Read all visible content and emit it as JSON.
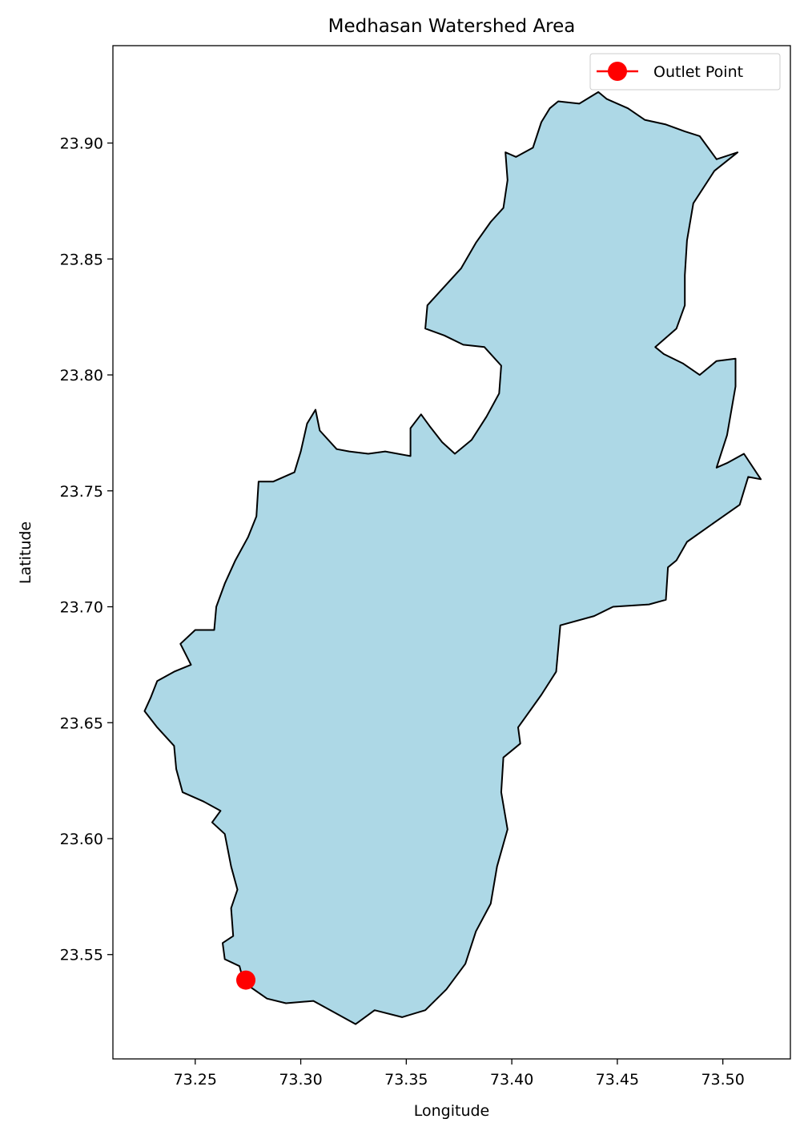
{
  "chart_data": {
    "type": "map",
    "title": "Medhasan Watershed Area",
    "xlabel": "Longitude",
    "ylabel": "Latitude",
    "xlim": [
      73.211,
      73.532
    ],
    "ylim": [
      23.505,
      23.942
    ],
    "x_ticks": [
      {
        "value": 73.25,
        "label": "73.25"
      },
      {
        "value": 73.3,
        "label": "73.30"
      },
      {
        "value": 73.35,
        "label": "73.35"
      },
      {
        "value": 73.4,
        "label": "73.40"
      },
      {
        "value": 73.45,
        "label": "73.45"
      },
      {
        "value": 73.5,
        "label": "73.50"
      }
    ],
    "y_ticks": [
      {
        "value": 23.55,
        "label": "23.55"
      },
      {
        "value": 23.6,
        "label": "23.60"
      },
      {
        "value": 23.65,
        "label": "23.65"
      },
      {
        "value": 23.7,
        "label": "23.70"
      },
      {
        "value": 23.75,
        "label": "23.75"
      },
      {
        "value": 23.8,
        "label": "23.80"
      },
      {
        "value": 23.85,
        "label": "23.85"
      },
      {
        "value": 23.9,
        "label": "23.90"
      }
    ],
    "grid": false,
    "legend": {
      "placement": "top-right",
      "entries": [
        "Outlet Point"
      ]
    },
    "watershed": {
      "fill_color": "#add8e6",
      "edge_color": "#000000",
      "boundary": [
        [
          73.273,
          23.538
        ],
        [
          73.284,
          23.531
        ],
        [
          73.293,
          23.529
        ],
        [
          73.306,
          23.53
        ],
        [
          73.318,
          23.524
        ],
        [
          73.326,
          23.52
        ],
        [
          73.335,
          23.526
        ],
        [
          73.348,
          23.523
        ],
        [
          73.359,
          23.526
        ],
        [
          73.369,
          23.535
        ],
        [
          73.378,
          23.546
        ],
        [
          73.383,
          23.56
        ],
        [
          73.39,
          23.572
        ],
        [
          73.393,
          23.588
        ],
        [
          73.398,
          23.604
        ],
        [
          73.395,
          23.62
        ],
        [
          73.396,
          23.635
        ],
        [
          73.404,
          23.641
        ],
        [
          73.403,
          23.648
        ],
        [
          73.414,
          23.662
        ],
        [
          73.421,
          23.672
        ],
        [
          73.423,
          23.692
        ],
        [
          73.439,
          23.696
        ],
        [
          73.448,
          23.7
        ],
        [
          73.465,
          23.701
        ],
        [
          73.473,
          23.703
        ],
        [
          73.474,
          23.717
        ],
        [
          73.478,
          23.72
        ],
        [
          73.483,
          23.728
        ],
        [
          73.497,
          23.737
        ],
        [
          73.508,
          23.744
        ],
        [
          73.512,
          23.756
        ],
        [
          73.518,
          23.755
        ],
        [
          73.51,
          23.766
        ],
        [
          73.502,
          23.762
        ],
        [
          73.497,
          23.76
        ],
        [
          73.502,
          23.774
        ],
        [
          73.506,
          23.795
        ],
        [
          73.506,
          23.807
        ],
        [
          73.497,
          23.806
        ],
        [
          73.489,
          23.8
        ],
        [
          73.481,
          23.805
        ],
        [
          73.472,
          23.809
        ],
        [
          73.468,
          23.812
        ],
        [
          73.478,
          23.82
        ],
        [
          73.482,
          23.83
        ],
        [
          73.482,
          23.843
        ],
        [
          73.483,
          23.858
        ],
        [
          73.486,
          23.874
        ],
        [
          73.496,
          23.888
        ],
        [
          73.507,
          23.896
        ],
        [
          73.497,
          23.893
        ],
        [
          73.489,
          23.903
        ],
        [
          73.482,
          23.905
        ],
        [
          73.473,
          23.908
        ],
        [
          73.463,
          23.91
        ],
        [
          73.455,
          23.915
        ],
        [
          73.445,
          23.919
        ],
        [
          73.441,
          23.922
        ],
        [
          73.432,
          23.917
        ],
        [
          73.422,
          23.918
        ],
        [
          73.418,
          23.915
        ],
        [
          73.414,
          23.909
        ],
        [
          73.41,
          23.898
        ],
        [
          73.402,
          23.894
        ],
        [
          73.397,
          23.896
        ],
        [
          73.398,
          23.884
        ],
        [
          73.396,
          23.872
        ],
        [
          73.39,
          23.866
        ],
        [
          73.383,
          23.857
        ],
        [
          73.376,
          23.846
        ],
        [
          73.366,
          23.836
        ],
        [
          73.36,
          23.83
        ],
        [
          73.359,
          23.82
        ],
        [
          73.368,
          23.817
        ],
        [
          73.377,
          23.813
        ],
        [
          73.387,
          23.812
        ],
        [
          73.395,
          23.804
        ],
        [
          73.394,
          23.792
        ],
        [
          73.388,
          23.782
        ],
        [
          73.381,
          23.772
        ],
        [
          73.373,
          23.766
        ],
        [
          73.367,
          23.771
        ],
        [
          73.361,
          23.778
        ],
        [
          73.357,
          23.783
        ],
        [
          73.352,
          23.777
        ],
        [
          73.352,
          23.765
        ],
        [
          73.34,
          23.767
        ],
        [
          73.332,
          23.766
        ],
        [
          73.323,
          23.767
        ],
        [
          73.317,
          23.768
        ],
        [
          73.309,
          23.776
        ],
        [
          73.307,
          23.785
        ],
        [
          73.303,
          23.779
        ],
        [
          73.3,
          23.767
        ],
        [
          73.297,
          23.758
        ],
        [
          73.287,
          23.754
        ],
        [
          73.28,
          23.754
        ],
        [
          73.279,
          23.739
        ],
        [
          73.275,
          23.73
        ],
        [
          73.269,
          23.72
        ],
        [
          73.264,
          23.71
        ],
        [
          73.26,
          23.7
        ],
        [
          73.259,
          23.69
        ],
        [
          73.25,
          23.69
        ],
        [
          73.243,
          23.684
        ],
        [
          73.248,
          23.675
        ],
        [
          73.24,
          23.672
        ],
        [
          73.232,
          23.668
        ],
        [
          73.229,
          23.661
        ],
        [
          73.226,
          23.655
        ],
        [
          73.232,
          23.648
        ],
        [
          73.24,
          23.64
        ],
        [
          73.241,
          23.63
        ],
        [
          73.244,
          23.62
        ],
        [
          73.254,
          23.616
        ],
        [
          73.262,
          23.612
        ],
        [
          73.258,
          23.607
        ],
        [
          73.264,
          23.602
        ],
        [
          73.267,
          23.588
        ],
        [
          73.27,
          23.578
        ],
        [
          73.267,
          23.57
        ],
        [
          73.268,
          23.558
        ],
        [
          73.263,
          23.555
        ],
        [
          73.264,
          23.548
        ],
        [
          73.271,
          23.545
        ]
      ]
    },
    "outlet_point": {
      "name": "Outlet Point",
      "x": 73.274,
      "y": 23.539,
      "color": "#ff0000"
    }
  }
}
